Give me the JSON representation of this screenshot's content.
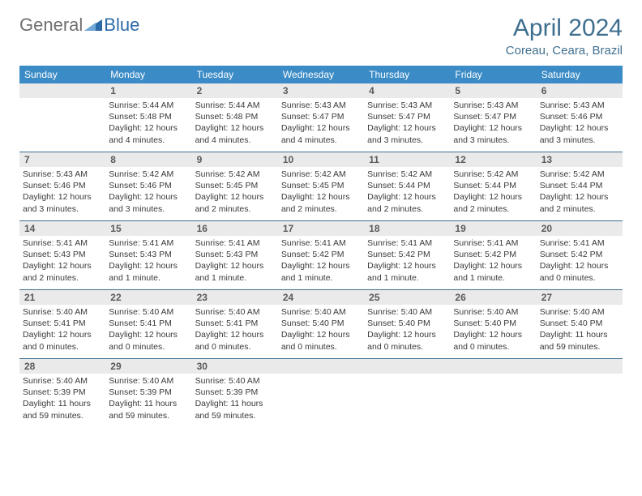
{
  "brand": {
    "part1": "General",
    "part2": "Blue"
  },
  "colors": {
    "header_blue": "#3b8bc6",
    "title_color": "#3f6f8f",
    "logo_gray": "#6f6f6f",
    "logo_blue": "#2c6aa8",
    "cell_bg": "#eaeaea",
    "rule_color": "#3f6f8f",
    "text": "#3a3a3a"
  },
  "title": "April 2024",
  "location": "Coreau, Ceara, Brazil",
  "dow": [
    "Sunday",
    "Monday",
    "Tuesday",
    "Wednesday",
    "Thursday",
    "Friday",
    "Saturday"
  ],
  "weeks": [
    [
      {
        "n": "",
        "sr": "",
        "ss": "",
        "dl": ""
      },
      {
        "n": "1",
        "sr": "Sunrise: 5:44 AM",
        "ss": "Sunset: 5:48 PM",
        "dl": "Daylight: 12 hours and 4 minutes."
      },
      {
        "n": "2",
        "sr": "Sunrise: 5:44 AM",
        "ss": "Sunset: 5:48 PM",
        "dl": "Daylight: 12 hours and 4 minutes."
      },
      {
        "n": "3",
        "sr": "Sunrise: 5:43 AM",
        "ss": "Sunset: 5:47 PM",
        "dl": "Daylight: 12 hours and 4 minutes."
      },
      {
        "n": "4",
        "sr": "Sunrise: 5:43 AM",
        "ss": "Sunset: 5:47 PM",
        "dl": "Daylight: 12 hours and 3 minutes."
      },
      {
        "n": "5",
        "sr": "Sunrise: 5:43 AM",
        "ss": "Sunset: 5:47 PM",
        "dl": "Daylight: 12 hours and 3 minutes."
      },
      {
        "n": "6",
        "sr": "Sunrise: 5:43 AM",
        "ss": "Sunset: 5:46 PM",
        "dl": "Daylight: 12 hours and 3 minutes."
      }
    ],
    [
      {
        "n": "7",
        "sr": "Sunrise: 5:43 AM",
        "ss": "Sunset: 5:46 PM",
        "dl": "Daylight: 12 hours and 3 minutes."
      },
      {
        "n": "8",
        "sr": "Sunrise: 5:42 AM",
        "ss": "Sunset: 5:46 PM",
        "dl": "Daylight: 12 hours and 3 minutes."
      },
      {
        "n": "9",
        "sr": "Sunrise: 5:42 AM",
        "ss": "Sunset: 5:45 PM",
        "dl": "Daylight: 12 hours and 2 minutes."
      },
      {
        "n": "10",
        "sr": "Sunrise: 5:42 AM",
        "ss": "Sunset: 5:45 PM",
        "dl": "Daylight: 12 hours and 2 minutes."
      },
      {
        "n": "11",
        "sr": "Sunrise: 5:42 AM",
        "ss": "Sunset: 5:44 PM",
        "dl": "Daylight: 12 hours and 2 minutes."
      },
      {
        "n": "12",
        "sr": "Sunrise: 5:42 AM",
        "ss": "Sunset: 5:44 PM",
        "dl": "Daylight: 12 hours and 2 minutes."
      },
      {
        "n": "13",
        "sr": "Sunrise: 5:42 AM",
        "ss": "Sunset: 5:44 PM",
        "dl": "Daylight: 12 hours and 2 minutes."
      }
    ],
    [
      {
        "n": "14",
        "sr": "Sunrise: 5:41 AM",
        "ss": "Sunset: 5:43 PM",
        "dl": "Daylight: 12 hours and 2 minutes."
      },
      {
        "n": "15",
        "sr": "Sunrise: 5:41 AM",
        "ss": "Sunset: 5:43 PM",
        "dl": "Daylight: 12 hours and 1 minute."
      },
      {
        "n": "16",
        "sr": "Sunrise: 5:41 AM",
        "ss": "Sunset: 5:43 PM",
        "dl": "Daylight: 12 hours and 1 minute."
      },
      {
        "n": "17",
        "sr": "Sunrise: 5:41 AM",
        "ss": "Sunset: 5:42 PM",
        "dl": "Daylight: 12 hours and 1 minute."
      },
      {
        "n": "18",
        "sr": "Sunrise: 5:41 AM",
        "ss": "Sunset: 5:42 PM",
        "dl": "Daylight: 12 hours and 1 minute."
      },
      {
        "n": "19",
        "sr": "Sunrise: 5:41 AM",
        "ss": "Sunset: 5:42 PM",
        "dl": "Daylight: 12 hours and 1 minute."
      },
      {
        "n": "20",
        "sr": "Sunrise: 5:41 AM",
        "ss": "Sunset: 5:42 PM",
        "dl": "Daylight: 12 hours and 0 minutes."
      }
    ],
    [
      {
        "n": "21",
        "sr": "Sunrise: 5:40 AM",
        "ss": "Sunset: 5:41 PM",
        "dl": "Daylight: 12 hours and 0 minutes."
      },
      {
        "n": "22",
        "sr": "Sunrise: 5:40 AM",
        "ss": "Sunset: 5:41 PM",
        "dl": "Daylight: 12 hours and 0 minutes."
      },
      {
        "n": "23",
        "sr": "Sunrise: 5:40 AM",
        "ss": "Sunset: 5:41 PM",
        "dl": "Daylight: 12 hours and 0 minutes."
      },
      {
        "n": "24",
        "sr": "Sunrise: 5:40 AM",
        "ss": "Sunset: 5:40 PM",
        "dl": "Daylight: 12 hours and 0 minutes."
      },
      {
        "n": "25",
        "sr": "Sunrise: 5:40 AM",
        "ss": "Sunset: 5:40 PM",
        "dl": "Daylight: 12 hours and 0 minutes."
      },
      {
        "n": "26",
        "sr": "Sunrise: 5:40 AM",
        "ss": "Sunset: 5:40 PM",
        "dl": "Daylight: 12 hours and 0 minutes."
      },
      {
        "n": "27",
        "sr": "Sunrise: 5:40 AM",
        "ss": "Sunset: 5:40 PM",
        "dl": "Daylight: 11 hours and 59 minutes."
      }
    ],
    [
      {
        "n": "28",
        "sr": "Sunrise: 5:40 AM",
        "ss": "Sunset: 5:39 PM",
        "dl": "Daylight: 11 hours and 59 minutes."
      },
      {
        "n": "29",
        "sr": "Sunrise: 5:40 AM",
        "ss": "Sunset: 5:39 PM",
        "dl": "Daylight: 11 hours and 59 minutes."
      },
      {
        "n": "30",
        "sr": "Sunrise: 5:40 AM",
        "ss": "Sunset: 5:39 PM",
        "dl": "Daylight: 11 hours and 59 minutes."
      },
      {
        "n": "",
        "sr": "",
        "ss": "",
        "dl": ""
      },
      {
        "n": "",
        "sr": "",
        "ss": "",
        "dl": ""
      },
      {
        "n": "",
        "sr": "",
        "ss": "",
        "dl": ""
      },
      {
        "n": "",
        "sr": "",
        "ss": "",
        "dl": ""
      }
    ]
  ]
}
